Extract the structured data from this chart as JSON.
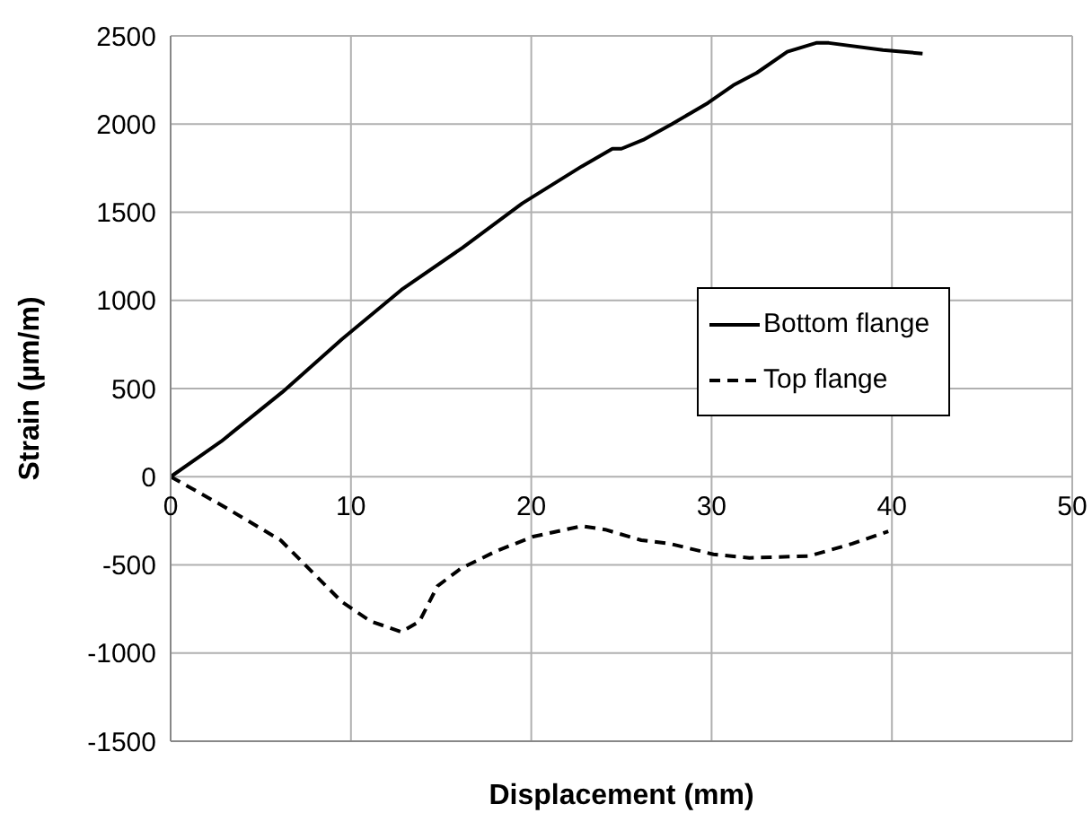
{
  "chart_data": {
    "type": "line",
    "xlabel": "Displacement (mm)",
    "ylabel": "Strain (µm/m)",
    "xlim": [
      0,
      50
    ],
    "xticks": [
      0,
      10,
      20,
      30,
      40,
      50
    ],
    "ylim": [
      -1500,
      2500
    ],
    "yticks": [
      -1500,
      -1000,
      -500,
      0,
      500,
      1000,
      1500,
      2000,
      2500
    ],
    "grid": true,
    "legend": "right",
    "marker": "none",
    "series": [
      {
        "name": "Bottom flange",
        "color": "#000000",
        "line_style": "solid",
        "x": [
          0,
          2.8,
          6.2,
          9.5,
          12.8,
          16.2,
          19.5,
          22.8,
          24.5,
          25,
          26.2,
          27.8,
          28.8,
          29.8,
          31.2,
          32.5,
          34.2,
          35.8,
          36.5,
          39.5,
          41.7
        ],
        "values": [
          0,
          200,
          480,
          780,
          1060,
          1300,
          1550,
          1760,
          1860,
          1860,
          1910,
          2000,
          2060,
          2120,
          2220,
          2290,
          2410,
          2460,
          2460,
          2420,
          2400
        ]
      },
      {
        "name": "Top flange",
        "color": "#000000",
        "line_style": "dashed",
        "x": [
          0,
          2.8,
          6.1,
          9.5,
          11.1,
          12.8,
          13.8,
          14.8,
          16.1,
          18.1,
          20.1,
          22.8,
          24.1,
          26.1,
          27.7,
          30.1,
          32.1,
          35.4,
          37.8,
          39.8
        ],
        "values": [
          0,
          -160,
          -360,
          -710,
          -820,
          -880,
          -820,
          -620,
          -520,
          -420,
          -340,
          -280,
          -300,
          -360,
          -380,
          -440,
          -460,
          -450,
          -380,
          -310
        ]
      }
    ]
  }
}
